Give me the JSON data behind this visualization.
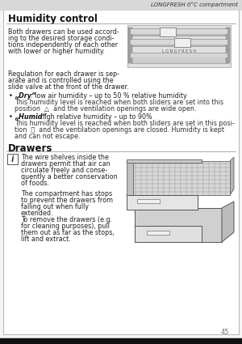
{
  "header_text": "LONGFRESH 0°C compartment",
  "title": "Humidity control",
  "drawers_title": "Drawers",
  "page_number": "45",
  "bg_color": "#f5f5f5",
  "content_bg": "#ffffff",
  "header_bg": "#d8d8d8",
  "para1_lines": [
    "Both drawers can be used accord-",
    "ing to the desired storage condi-",
    "tions independently of each other",
    "with lower or higher humidity."
  ],
  "para2_lines": [
    "Regulation for each drawer is sep-",
    "arate and is controlled using the",
    "slide valve at the front of the drawer."
  ],
  "b1_bold": "„Dry“",
  "b1_rest": ": low air humidity – up to 50 % relative humidity",
  "b1_sub1": "This humidity level is reached when both sliders are set into this",
  "b1_sub2": "position  △  and the ventilation openings are wide open.",
  "b2_bold": "„Humid“",
  "b2_rest": ": high relative humidity – up to 90%",
  "b2_sub1": "This humidity level is reached when both sliders are set in this posi-",
  "b2_sub2": "tion  ⛶  and the ventilation openings are closed. Humidity is kept",
  "b2_sub3": "and can not escape.",
  "info1": "The wire shelves inside the",
  "info2": "drawers permit that air can",
  "info3": "circulate freely and conse-",
  "info4": "quently a better conservation",
  "info5": "of foods.",
  "info6": "The compartment has stops",
  "info7": "to prevent the drawers from",
  "info8": "falling out when fully",
  "info9": "extended.",
  "info10": "To remove the drawers (e.g.",
  "info11": "for cleaning purposes), pull",
  "info12": "them out as far as the stops,",
  "info13": "lift and extract."
}
